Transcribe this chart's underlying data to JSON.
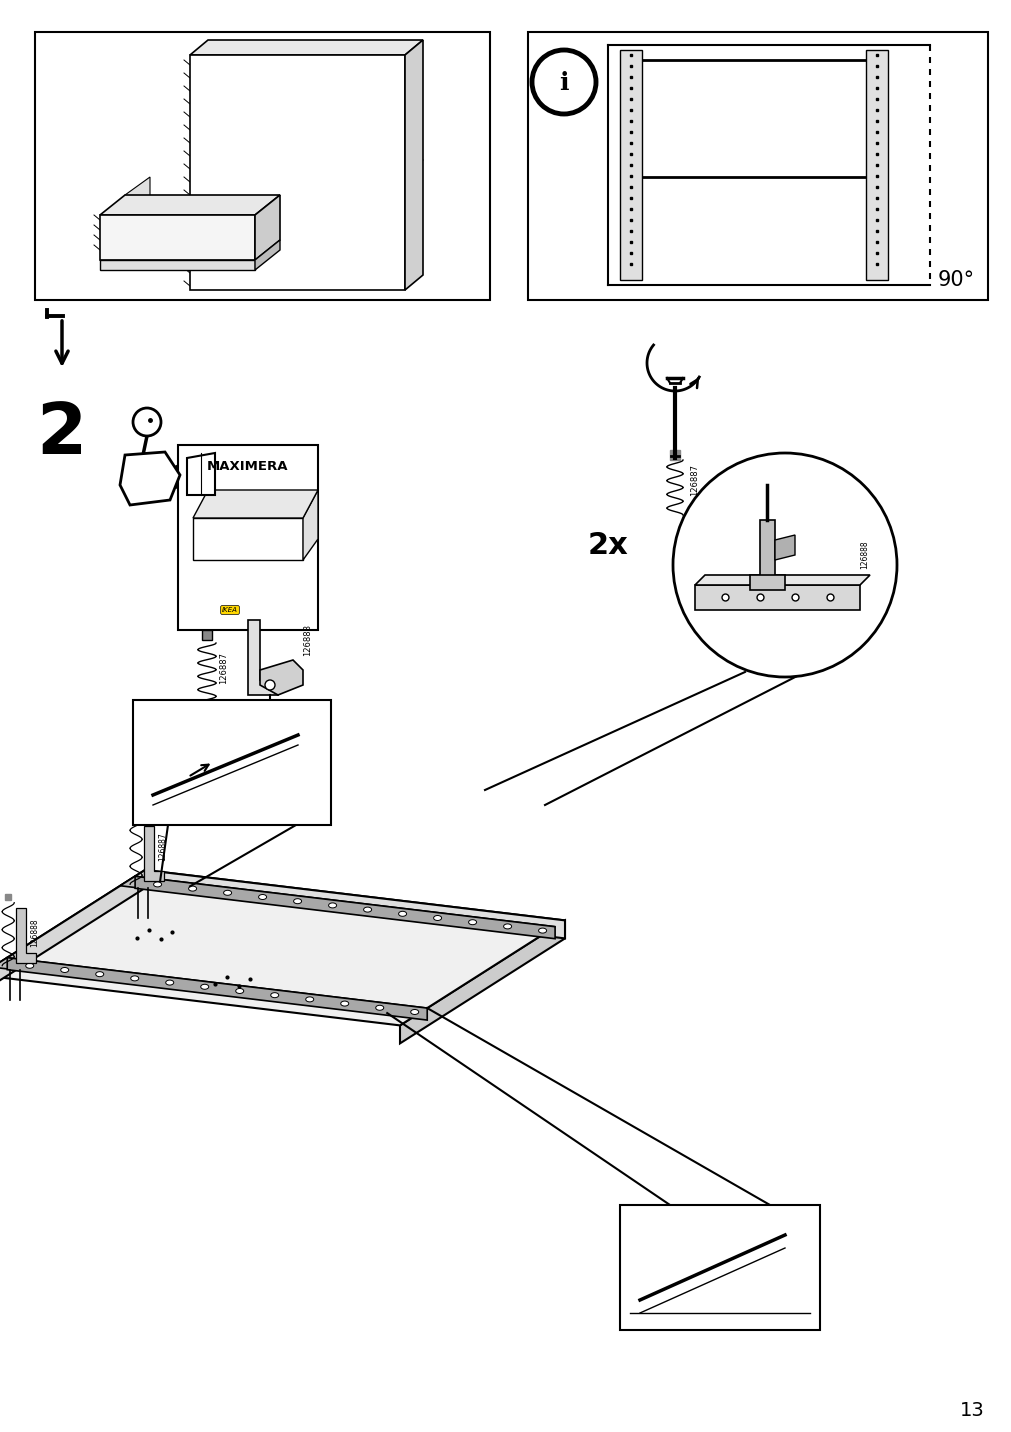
{
  "page_number": "13",
  "background_color": "#ffffff",
  "line_color": "#000000",
  "step_number": "2",
  "part_numbers": [
    "126887",
    "126888"
  ],
  "quantity_label": "2x",
  "angle_label": "90°",
  "product_name": "MAXIMERA",
  "figsize": [
    10.12,
    14.32
  ],
  "dpi": 100
}
